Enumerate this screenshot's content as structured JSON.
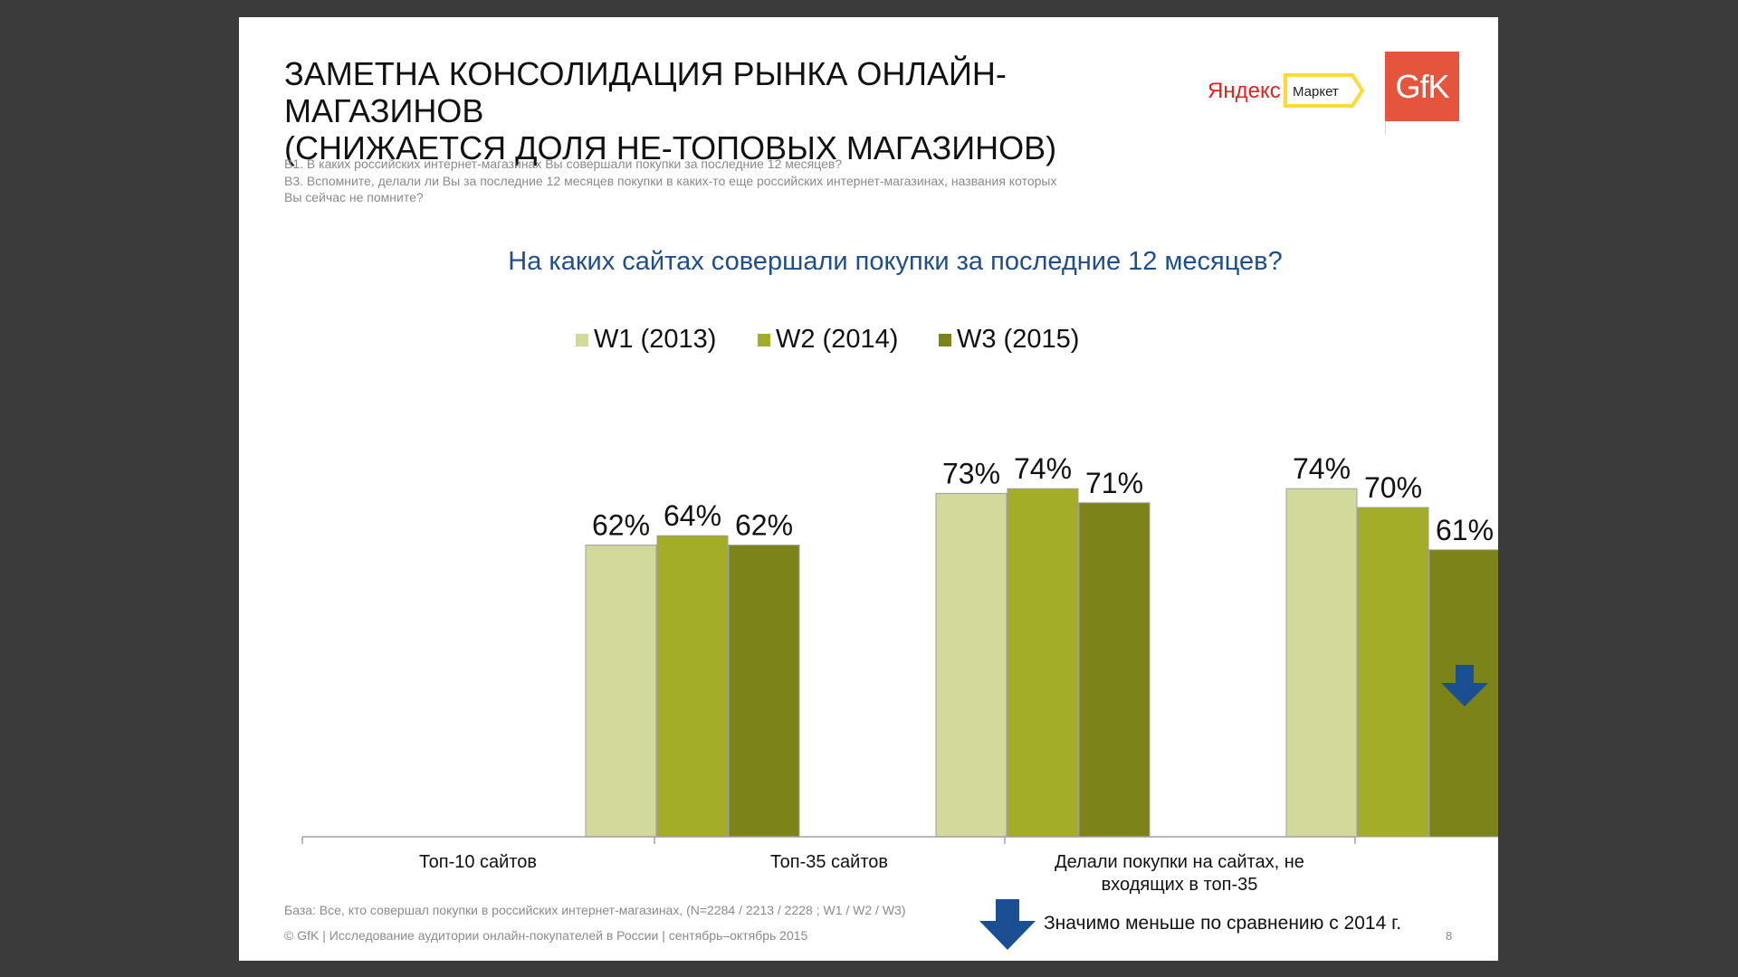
{
  "slide": {
    "title_lines": [
      "ЗАМЕТНА КОНСОЛИДАЦИЯ РЫНКА ОНЛАЙН-МАГАЗИНОВ",
      "(СНИЖАЕТСЯ ДОЛЯ НЕ-ТОПОВЫХ МАГАЗИНОВ)"
    ],
    "questions": [
      "В1. В каких российских интернет-магазинах Вы совершали покупки за последние 12 месяцев?",
      "В3. Вспомните, делали ли Вы за последние 12 месяцев покупки в каких-то еще российских интернет-магазинах, названия которых",
      "Вы сейчас не помните?"
    ],
    "logos": {
      "yandex_text": "Яндекс",
      "market_text": "Маркет",
      "gfk_text": "GfK"
    },
    "base_note": "База: Все, кто совершал покупки в российских интернет-магазинах, (N=2284 / 2213 / 2228 ; W1 / W2 / W3)",
    "footer": "© GfK | Исследование аудитории онлайн-покупателей в России | сентябрь–октябрь 2015",
    "significance_legend": "Значимо меньше по сравнению с 2014 г.",
    "page_number": "8",
    "colors": {
      "w1": "#d2d99a",
      "w2": "#a3ad27",
      "w3": "#7c8419",
      "subtitle": "#1f4e8c",
      "arrow": "#1b4f93",
      "yandex_red": "#e3201b",
      "market_yellow": "#ffd83a",
      "gfk_orange": "#e5543d"
    }
  },
  "chart_data": {
    "type": "bar",
    "title": "На каких сайтах совершали покупки за последние 12 месяцев?",
    "categories": [
      "Топ-10 сайтов",
      "Топ-35 сайтов",
      "Делали покупки на сайтах, не входящих в топ-35"
    ],
    "category_lines": [
      [
        "Топ-10 сайтов"
      ],
      [
        "Топ-35 сайтов"
      ],
      [
        "Делали покупки на сайтах, не",
        "входящих в топ-35"
      ]
    ],
    "series": [
      {
        "name": "W1 (2013)",
        "values": [
          62,
          73,
          74
        ],
        "labels": [
          "62%",
          "73%",
          "74%"
        ]
      },
      {
        "name": "W2 (2014)",
        "values": [
          64,
          74,
          70
        ],
        "labels": [
          "64%",
          "74%",
          "70%"
        ]
      },
      {
        "name": "W3 (2015)",
        "values": [
          62,
          71,
          61
        ],
        "labels": [
          "62%",
          "71%",
          "61%"
        ]
      }
    ],
    "significant_decrease": [
      {
        "series": 2,
        "category": 2
      }
    ],
    "ylim": [
      0,
      100
    ],
    "legend_position": "top-center",
    "grid": false
  }
}
